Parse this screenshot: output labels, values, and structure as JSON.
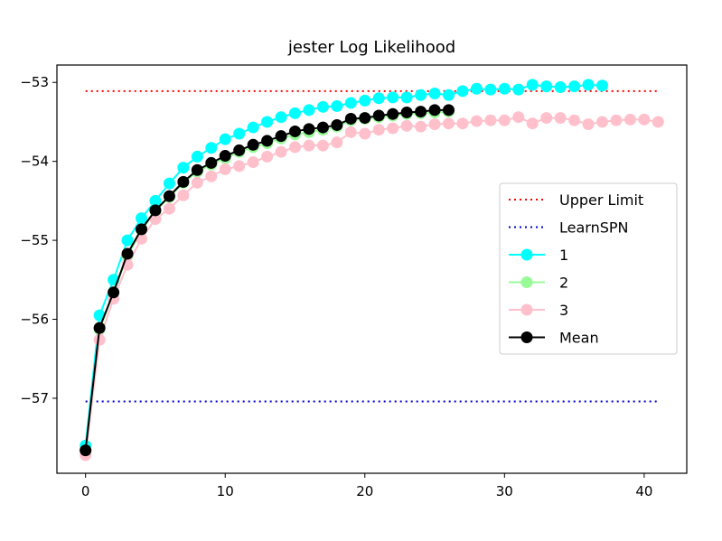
{
  "chart_data": {
    "type": "line",
    "title": "jester Log Likelihood",
    "xlabel": "",
    "ylabel": "",
    "xlim": [
      -2.05,
      43.05
    ],
    "ylim": [
      -57.95,
      -52.78
    ],
    "xticks": [
      0,
      10,
      20,
      30,
      40
    ],
    "yticks": [
      -57,
      -56,
      -55,
      -54,
      -53
    ],
    "grid": false,
    "legend": "center-right",
    "reference_lines": [
      {
        "name": "Upper Limit",
        "y": -53.11,
        "x_range": [
          0,
          41
        ],
        "color": "#ff0000",
        "style": "dotted"
      },
      {
        "name": "LearnSPN",
        "y": -57.04,
        "x_range": [
          0,
          41
        ],
        "color": "#0000cd",
        "style": "dotted"
      }
    ],
    "series": [
      {
        "name": "1",
        "color": "#00ffff",
        "values": [
          -57.6,
          -55.95,
          -55.5,
          -55.0,
          -54.72,
          -54.5,
          -54.28,
          -54.08,
          -53.94,
          -53.83,
          -53.72,
          -53.65,
          -53.57,
          -53.5,
          -53.44,
          -53.39,
          -53.35,
          -53.31,
          -53.3,
          -53.26,
          -53.23,
          -53.2,
          -53.19,
          -53.19,
          -53.16,
          -53.14,
          -53.16,
          -53.11,
          -53.08,
          -53.09,
          -53.08,
          -53.09,
          -53.03,
          -53.05,
          -53.06,
          -53.05,
          -53.03,
          -53.04
        ]
      },
      {
        "name": "2",
        "color": "#98fb98",
        "values": [
          -57.66,
          -56.13,
          -55.66,
          -55.2,
          -54.87,
          -54.63,
          -54.45,
          -54.27,
          -54.13,
          -54.04,
          -53.96,
          -53.88,
          -53.82,
          -53.77,
          -53.71,
          -53.66,
          -53.63,
          -53.6,
          -53.56,
          -53.48,
          -53.46,
          -53.44,
          -53.42,
          -53.4,
          -53.39,
          -53.38,
          -53.37
        ]
      },
      {
        "name": "3",
        "color": "#ffc0cb",
        "values": [
          -57.72,
          -56.26,
          -55.74,
          -55.31,
          -54.98,
          -54.73,
          -54.6,
          -54.43,
          -54.27,
          -54.19,
          -54.1,
          -54.06,
          -54.01,
          -53.94,
          -53.88,
          -53.82,
          -53.8,
          -53.8,
          -53.76,
          -53.63,
          -53.65,
          -53.6,
          -53.58,
          -53.55,
          -53.56,
          -53.53,
          -53.52,
          -53.52,
          -53.49,
          -53.48,
          -53.48,
          -53.44,
          -53.52,
          -53.45,
          -53.45,
          -53.48,
          -53.53,
          -53.5,
          -53.48,
          -53.47,
          -53.47,
          -53.5
        ]
      },
      {
        "name": "Mean",
        "color": "#000000",
        "values": [
          -57.66,
          -56.11,
          -55.66,
          -55.17,
          -54.86,
          -54.62,
          -54.44,
          -54.26,
          -54.11,
          -54.02,
          -53.93,
          -53.86,
          -53.79,
          -53.74,
          -53.68,
          -53.62,
          -53.59,
          -53.57,
          -53.54,
          -53.46,
          -53.45,
          -53.42,
          -53.4,
          -53.38,
          -53.37,
          -53.35,
          -53.35
        ]
      }
    ]
  }
}
